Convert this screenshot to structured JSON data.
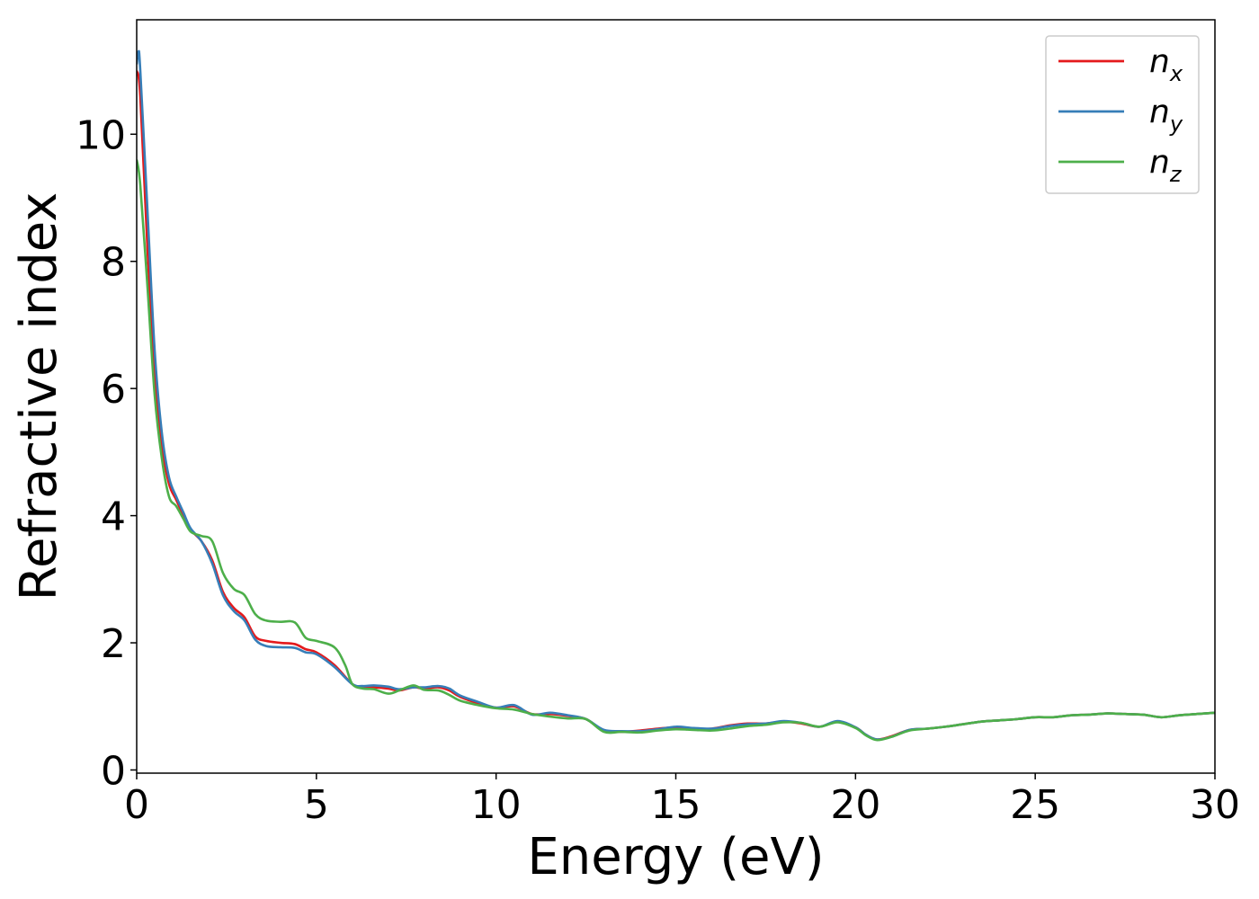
{
  "chart_data": {
    "type": "line",
    "title": "",
    "xlabel": "Energy (eV)",
    "ylabel": "Refractive index",
    "xlim": [
      0,
      30
    ],
    "ylim": [
      -0.05,
      11.8
    ],
    "xticks": [
      0,
      5,
      10,
      15,
      20,
      25,
      30
    ],
    "yticks": [
      0,
      2,
      4,
      6,
      8,
      10
    ],
    "xtick_labels": [
      "0",
      "5",
      "10",
      "15",
      "20",
      "25",
      "30"
    ],
    "ytick_labels": [
      "0",
      "2",
      "4",
      "6",
      "8",
      "10"
    ],
    "grid": false,
    "legend": {
      "placement": "top-right",
      "entries": [
        {
          "base": "n",
          "sub": "x",
          "color": "#e41a1c"
        },
        {
          "base": "n",
          "sub": "y",
          "color": "#377eb8"
        },
        {
          "base": "n",
          "sub": "z",
          "color": "#4daf4a"
        }
      ]
    },
    "series": [
      {
        "name": "n_x",
        "color": "#e41a1c",
        "x": [
          0,
          0.1,
          0.3,
          0.5,
          0.7,
          0.9,
          1.1,
          1.3,
          1.5,
          1.8,
          2.1,
          2.4,
          2.7,
          3.0,
          3.3,
          3.6,
          4.0,
          4.4,
          4.7,
          5.0,
          5.5,
          6.0,
          6.3,
          6.6,
          7.0,
          7.3,
          7.7,
          8.0,
          8.4,
          8.7,
          9.0,
          9.5,
          10.0,
          10.5,
          11.0,
          11.5,
          12.0,
          12.5,
          13.0,
          13.5,
          14.0,
          14.5,
          15.0,
          15.5,
          16.0,
          16.5,
          17.0,
          17.5,
          18.0,
          18.5,
          19.0,
          19.5,
          20.0,
          20.3,
          20.6,
          21.0,
          21.5,
          22.0,
          22.5,
          23.0,
          23.5,
          24.0,
          24.5,
          25.0,
          25.5,
          26.0,
          26.5,
          27.0,
          27.5,
          28.0,
          28.5,
          29.0,
          29.5,
          30.0
        ],
        "y": [
          11.0,
          10.6,
          8.2,
          6.2,
          5.1,
          4.5,
          4.25,
          4.0,
          3.78,
          3.6,
          3.3,
          2.8,
          2.55,
          2.4,
          2.1,
          2.03,
          2.0,
          1.98,
          1.9,
          1.85,
          1.65,
          1.35,
          1.3,
          1.3,
          1.28,
          1.25,
          1.3,
          1.28,
          1.3,
          1.25,
          1.15,
          1.05,
          0.98,
          1.0,
          0.88,
          0.88,
          0.85,
          0.8,
          0.62,
          0.6,
          0.62,
          0.65,
          0.67,
          0.65,
          0.65,
          0.7,
          0.73,
          0.73,
          0.76,
          0.73,
          0.68,
          0.76,
          0.67,
          0.55,
          0.48,
          0.53,
          0.63,
          0.65,
          0.68,
          0.72,
          0.76,
          0.78,
          0.8,
          0.83,
          0.83,
          0.86,
          0.87,
          0.89,
          0.88,
          0.87,
          0.83,
          0.86,
          0.88,
          0.9
        ]
      },
      {
        "name": "n_y",
        "color": "#377eb8",
        "x": [
          0,
          0.05,
          0.1,
          0.3,
          0.5,
          0.7,
          0.9,
          1.1,
          1.3,
          1.5,
          1.8,
          2.1,
          2.4,
          2.7,
          3.0,
          3.3,
          3.6,
          4.0,
          4.4,
          4.7,
          5.0,
          5.5,
          6.0,
          6.3,
          6.6,
          7.0,
          7.3,
          7.7,
          8.0,
          8.4,
          8.7,
          9.0,
          9.5,
          10.0,
          10.5,
          11.0,
          11.5,
          12.0,
          12.5,
          13.0,
          13.5,
          14.0,
          14.5,
          15.0,
          15.5,
          16.0,
          16.5,
          17.0,
          17.5,
          18.0,
          18.5,
          19.0,
          19.5,
          20.0,
          20.3,
          20.6,
          21.0,
          21.5,
          22.0,
          22.5,
          23.0,
          23.5,
          24.0,
          24.5,
          25.0,
          25.5,
          26.0,
          26.5,
          27.0,
          27.5,
          28.0,
          28.5,
          29.0,
          29.5,
          30.0
        ],
        "y": [
          11.1,
          11.3,
          11.0,
          8.8,
          6.6,
          5.3,
          4.6,
          4.3,
          4.05,
          3.8,
          3.6,
          3.25,
          2.75,
          2.5,
          2.35,
          2.05,
          1.95,
          1.93,
          1.92,
          1.85,
          1.82,
          1.62,
          1.35,
          1.32,
          1.33,
          1.31,
          1.27,
          1.3,
          1.3,
          1.32,
          1.28,
          1.17,
          1.07,
          0.98,
          1.02,
          0.87,
          0.9,
          0.86,
          0.8,
          0.63,
          0.61,
          0.61,
          0.64,
          0.68,
          0.66,
          0.65,
          0.69,
          0.72,
          0.73,
          0.77,
          0.74,
          0.68,
          0.77,
          0.67,
          0.55,
          0.48,
          0.52,
          0.63,
          0.65,
          0.68,
          0.72,
          0.76,
          0.78,
          0.8,
          0.83,
          0.83,
          0.86,
          0.87,
          0.89,
          0.88,
          0.87,
          0.83,
          0.86,
          0.88,
          0.9
        ]
      },
      {
        "name": "n_z",
        "color": "#4daf4a",
        "x": [
          0,
          0.1,
          0.3,
          0.5,
          0.7,
          0.9,
          1.1,
          1.3,
          1.5,
          1.8,
          2.1,
          2.4,
          2.7,
          3.0,
          3.3,
          3.6,
          4.0,
          4.4,
          4.7,
          5.0,
          5.5,
          5.8,
          6.0,
          6.3,
          6.6,
          7.0,
          7.3,
          7.7,
          8.0,
          8.4,
          8.7,
          9.0,
          9.5,
          10.0,
          10.5,
          11.0,
          11.5,
          12.0,
          12.5,
          13.0,
          13.5,
          14.0,
          14.5,
          15.0,
          15.5,
          16.0,
          16.5,
          17.0,
          17.5,
          18.0,
          18.5,
          19.0,
          19.5,
          20.0,
          20.3,
          20.6,
          21.0,
          21.5,
          22.0,
          22.5,
          23.0,
          23.5,
          24.0,
          24.5,
          25.0,
          25.5,
          26.0,
          26.5,
          27.0,
          27.5,
          28.0,
          28.5,
          29.0,
          29.5,
          30.0
        ],
        "y": [
          9.6,
          9.2,
          7.6,
          5.9,
          4.9,
          4.3,
          4.15,
          3.95,
          3.75,
          3.68,
          3.6,
          3.1,
          2.85,
          2.75,
          2.45,
          2.35,
          2.33,
          2.32,
          2.08,
          2.03,
          1.93,
          1.65,
          1.35,
          1.28,
          1.27,
          1.2,
          1.25,
          1.33,
          1.26,
          1.25,
          1.18,
          1.09,
          1.02,
          0.97,
          0.95,
          0.88,
          0.84,
          0.81,
          0.8,
          0.6,
          0.6,
          0.59,
          0.62,
          0.64,
          0.63,
          0.62,
          0.65,
          0.69,
          0.71,
          0.75,
          0.74,
          0.68,
          0.75,
          0.66,
          0.54,
          0.47,
          0.52,
          0.62,
          0.65,
          0.68,
          0.72,
          0.76,
          0.78,
          0.8,
          0.83,
          0.83,
          0.86,
          0.87,
          0.89,
          0.88,
          0.87,
          0.83,
          0.86,
          0.88,
          0.9
        ]
      }
    ]
  }
}
